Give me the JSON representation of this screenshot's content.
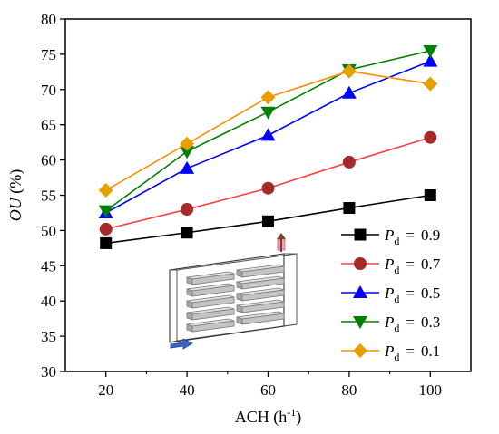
{
  "chart_data": {
    "type": "line",
    "xlabel": {
      "main": "ACH (h",
      "sup": "-1",
      "close": ")"
    },
    "ylabel": {
      "italic": "OU",
      "rest": " (%)"
    },
    "x": [
      20,
      40,
      60,
      80,
      100
    ],
    "xticks": [
      20,
      40,
      60,
      80,
      100
    ],
    "xlim": [
      10,
      110
    ],
    "yticks": [
      30,
      35,
      40,
      45,
      50,
      55,
      60,
      65,
      70,
      75,
      80
    ],
    "ylim": [
      30,
      80
    ],
    "grid": false,
    "legend_position": "bottom-right",
    "series": [
      {
        "name": "0.9",
        "symbol": "P",
        "subscript": "d",
        "eq": "=",
        "marker": "square",
        "color": "#000000",
        "values": [
          48.2,
          49.7,
          51.3,
          53.2,
          55.0
        ]
      },
      {
        "name": "0.7",
        "symbol": "P",
        "subscript": "d",
        "eq": "=",
        "marker": "circle",
        "color": "#ff4040",
        "marker_color": "#a52a2a",
        "values": [
          50.2,
          53.0,
          56.0,
          59.7,
          63.2
        ]
      },
      {
        "name": "0.5",
        "symbol": "P",
        "subscript": "d",
        "eq": "=",
        "marker": "triangle-up",
        "color": "#0000ff",
        "values": [
          52.5,
          58.8,
          63.5,
          69.5,
          74.0
        ]
      },
      {
        "name": "0.3",
        "symbol": "P",
        "subscript": "d",
        "eq": "=",
        "marker": "triangle-down",
        "color": "#008000",
        "values": [
          52.8,
          61.2,
          66.8,
          72.8,
          75.5
        ]
      },
      {
        "name": "0.1",
        "symbol": "P",
        "subscript": "d",
        "eq": "=",
        "marker": "diamond",
        "color": "#ff8c00",
        "marker_color": "#e5a000",
        "values": [
          55.7,
          62.3,
          68.9,
          72.6,
          70.8
        ]
      }
    ],
    "inset": {
      "depicts": "3D schematic of room with stacked shelves, inlet arrow and outlet arrow"
    }
  }
}
